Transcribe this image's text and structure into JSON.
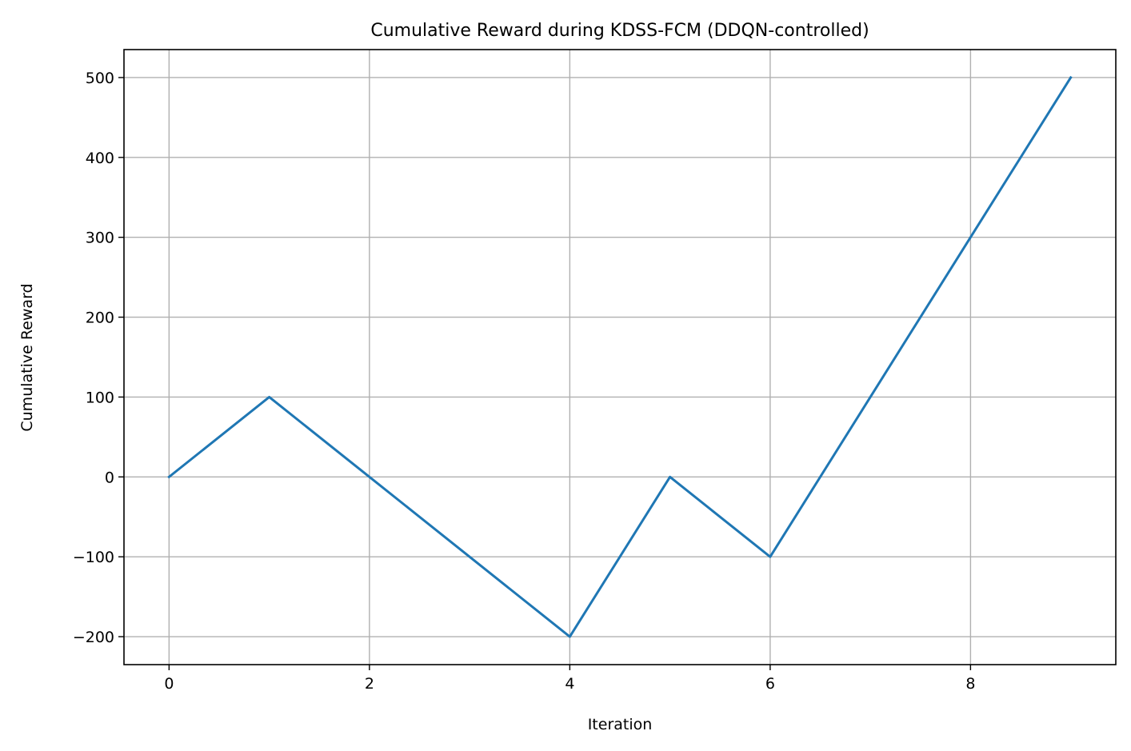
{
  "chart_data": {
    "type": "line",
    "title": "Cumulative Reward during KDSS-FCM (DDQN-controlled)",
    "xlabel": "Iteration",
    "ylabel": "Cumulative Reward",
    "x": [
      0,
      1,
      2,
      3,
      4,
      5,
      6,
      7,
      8,
      9
    ],
    "series": [
      {
        "values": [
          0,
          100,
          0,
          -100,
          -200,
          0,
          -100,
          100,
          300,
          500
        ],
        "color": "#1f77b4"
      }
    ],
    "xticks": [
      0,
      2,
      4,
      6,
      8
    ],
    "xtick_labels": [
      "0",
      "2",
      "4",
      "6",
      "8"
    ],
    "yticks": [
      -200,
      -100,
      0,
      100,
      200,
      300,
      400,
      500
    ],
    "ytick_labels": [
      "−200",
      "−100",
      "0",
      "100",
      "200",
      "300",
      "400",
      "500"
    ],
    "xlim": [
      -0.45,
      9.45
    ],
    "ylim": [
      -235,
      535
    ],
    "grid": true,
    "legend": "none"
  }
}
